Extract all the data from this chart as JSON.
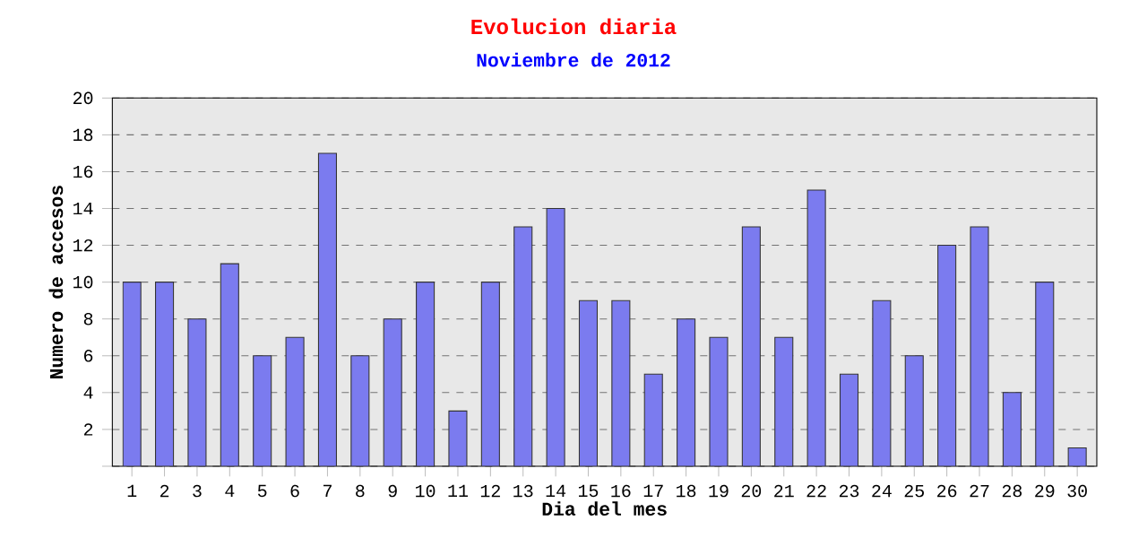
{
  "chart_data": {
    "type": "bar",
    "title": "Evolucion diaria",
    "subtitle": "Noviembre de 2012",
    "xlabel": "Dia del mes",
    "ylabel": "Numero de accesos",
    "categories": [
      "1",
      "2",
      "3",
      "4",
      "5",
      "6",
      "7",
      "8",
      "9",
      "10",
      "11",
      "12",
      "13",
      "14",
      "15",
      "16",
      "17",
      "18",
      "19",
      "20",
      "21",
      "22",
      "23",
      "24",
      "25",
      "26",
      "27",
      "28",
      "29",
      "30"
    ],
    "values": [
      10,
      10,
      8,
      11,
      6,
      7,
      17,
      6,
      8,
      10,
      3,
      10,
      13,
      14,
      9,
      9,
      5,
      8,
      7,
      13,
      7,
      15,
      5,
      9,
      6,
      12,
      13,
      4,
      10,
      1
    ],
    "color": "#7b7bef",
    "ylim": [
      0,
      20
    ],
    "yticks": [
      {
        "value": 0,
        "label": null
      },
      2,
      4,
      6,
      8,
      10,
      12,
      14,
      16,
      18,
      20
    ],
    "grid": "y"
  }
}
